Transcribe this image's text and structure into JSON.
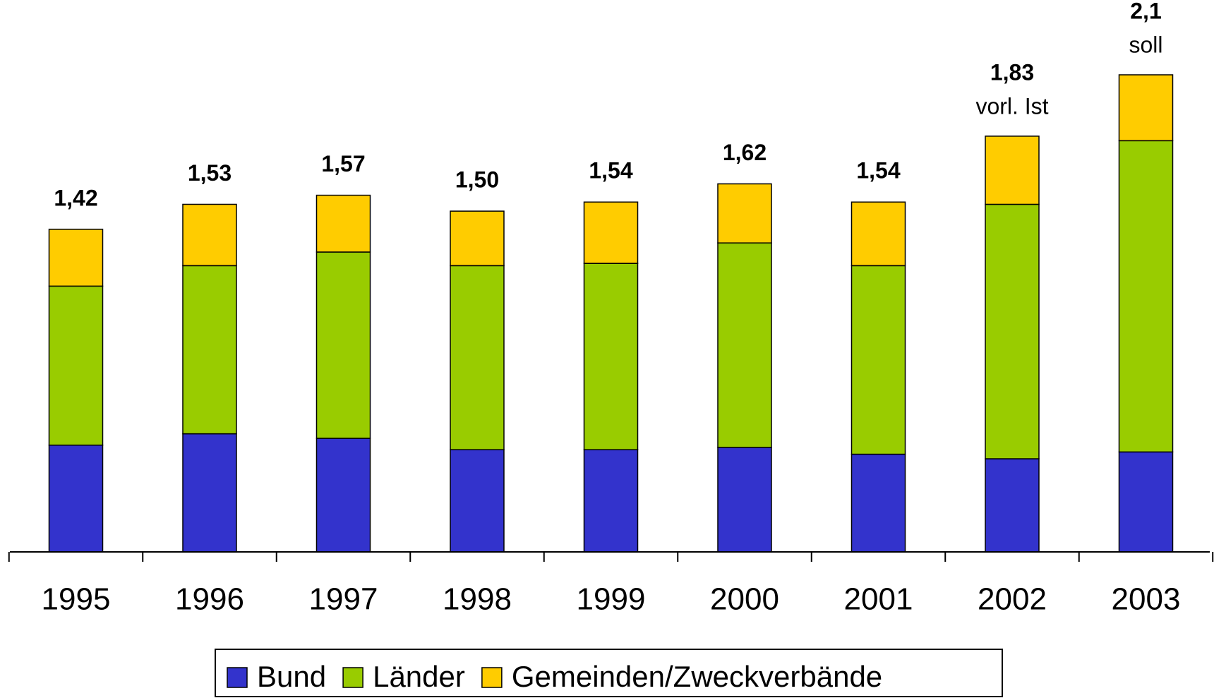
{
  "chart_data": {
    "type": "stacked_bar",
    "categories": [
      "1995",
      "1996",
      "1997",
      "1998",
      "1999",
      "2000",
      "2001",
      "2002",
      "2003"
    ],
    "series": [
      {
        "name": "Bund",
        "color": "#3333cc",
        "values": [
          0.47,
          0.52,
          0.5,
          0.45,
          0.45,
          0.46,
          0.43,
          0.41,
          0.44
        ]
      },
      {
        "name": "Länder",
        "color": "#99cc00",
        "values": [
          0.7,
          0.74,
          0.82,
          0.81,
          0.82,
          0.9,
          0.83,
          1.12,
          1.37
        ]
      },
      {
        "name": "Gemeinden/Zweckverbände",
        "color": "#ffcc00",
        "values": [
          0.25,
          0.27,
          0.25,
          0.24,
          0.27,
          0.26,
          0.28,
          0.3,
          0.29
        ]
      }
    ],
    "totals": [
      1.42,
      1.53,
      1.57,
      1.5,
      1.54,
      1.62,
      1.54,
      1.83,
      2.1
    ],
    "total_labels": [
      "1,42",
      "1,53",
      "1,57",
      "1,50",
      "1,54",
      "1,62",
      "1,54",
      "1,83",
      "2,1"
    ],
    "annotations": [
      {
        "category": "2002",
        "text": "vorl. Ist"
      },
      {
        "category": "2003",
        "text": "soll"
      }
    ],
    "legend": "bottom"
  }
}
